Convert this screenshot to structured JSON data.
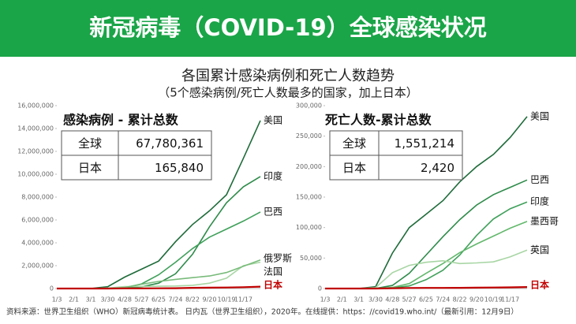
{
  "header": {
    "title": "新冠病毒（COVID-19）全球感染状况"
  },
  "subtitle": [
    "各国累计感染病例和死亡人数趋势",
    "（5个感染病例/死亡人数最多的国家，加上日本）"
  ],
  "chart_data": [
    {
      "type": "line",
      "title": "感染病例 - 累计总数",
      "table": [
        [
          "全球",
          "67,780,361"
        ],
        [
          "日本",
          "165,840"
        ]
      ],
      "categories": [
        "1/3",
        "2/1",
        "3/1",
        "3/30",
        "4/28",
        "5/27",
        "6/25",
        "7/24",
        "8/22",
        "9/20",
        "10/19",
        "11/17",
        null
      ],
      "ylim": [
        0,
        16000000
      ],
      "yticks": [
        0,
        {
          "value": 2000000,
          "label": "2,000,000"
        },
        {
          "value": 4000000,
          "label": "4,000,000"
        },
        {
          "value": 6000000,
          "label": "6,000,000"
        },
        {
          "value": 8000000,
          "label": "8,000,000"
        },
        {
          "value": 10000000,
          "label": "10,000,000"
        },
        {
          "value": 12000000,
          "label": "12,000,000"
        },
        {
          "value": 14000000,
          "label": "14,000,000"
        },
        {
          "value": 16000000,
          "label": "16,000,000"
        }
      ],
      "series": [
        {
          "name": "美国",
          "color": "#1e6b3a",
          "values": [
            0,
            0,
            0,
            160000,
            1000000,
            1700000,
            2400000,
            4100000,
            5600000,
            6800000,
            8200000,
            11400000,
            14700000
          ]
        },
        {
          "name": "印度",
          "color": "#2e8b4a",
          "values": [
            0,
            0,
            0,
            0,
            30000,
            150000,
            470000,
            1290000,
            3000000,
            5400000,
            7500000,
            8900000,
            9800000
          ]
        },
        {
          "name": "巴西",
          "color": "#3fa05a",
          "values": [
            0,
            0,
            0,
            0,
            70000,
            410000,
            1200000,
            2300000,
            3500000,
            4500000,
            5200000,
            5900000,
            6700000
          ]
        },
        {
          "name": "法国",
          "color": "#a8d6a4",
          "values": [
            0,
            0,
            0,
            40000,
            170000,
            180000,
            200000,
            220000,
            280000,
            470000,
            900000,
            2000000,
            2300000
          ]
        },
        {
          "name": "俄罗斯",
          "color": "#78bb7a",
          "values": [
            0,
            0,
            0,
            0,
            90000,
            370000,
            620000,
            800000,
            950000,
            1100000,
            1400000,
            1950000,
            2500000
          ]
        },
        {
          "name": "日本",
          "color": "#c00000",
          "values": [
            0,
            0,
            0,
            0,
            14000,
            17000,
            18000,
            28000,
            62000,
            79000,
            93000,
            120000,
            165840
          ]
        }
      ]
    },
    {
      "type": "line",
      "title": "死亡人数-累计总数",
      "table": [
        [
          "全球",
          "1,551,214"
        ],
        [
          "日本",
          "2,420"
        ]
      ],
      "categories": [
        "1/3",
        "2/1",
        "3/1",
        "3/30",
        "4/28",
        "5/27",
        "6/25",
        "7/24",
        "8/22",
        "9/20",
        "10/19",
        "11/17",
        null
      ],
      "ylim": [
        0,
        300000
      ],
      "yticks": [
        0,
        {
          "value": 50000,
          "label": "50,000"
        },
        {
          "value": 100000,
          "label": "100,000"
        },
        {
          "value": 150000,
          "label": "150,000"
        },
        {
          "value": 200000,
          "label": "200,000"
        },
        {
          "value": 250000,
          "label": "250,000"
        },
        {
          "value": 300000,
          "label": "300,000"
        }
      ],
      "series": [
        {
          "name": "美国",
          "color": "#1e6b3a",
          "values": [
            0,
            0,
            0,
            3000,
            58000,
            100000,
            122000,
            144000,
            175000,
            200000,
            220000,
            248000,
            282000
          ]
        },
        {
          "name": "巴西",
          "color": "#2e8b4a",
          "values": [
            0,
            0,
            0,
            150,
            5000,
            25000,
            55000,
            85000,
            113000,
            137000,
            154000,
            166000,
            178000
          ]
        },
        {
          "name": "印度",
          "color": "#3fa05a",
          "values": [
            0,
            0,
            0,
            30,
            1000,
            4300,
            14500,
            30000,
            55000,
            87000,
            114000,
            131000,
            142000
          ]
        },
        {
          "name": "墨西哥",
          "color": "#62b86c",
          "values": [
            0,
            0,
            0,
            30,
            1800,
            8100,
            25000,
            41000,
            59000,
            73000,
            86000,
            99000,
            110000
          ]
        },
        {
          "name": "英国",
          "color": "#a8d6a4",
          "values": [
            0,
            0,
            0,
            1400,
            26000,
            38000,
            43000,
            45500,
            41000,
            42000,
            43700,
            52000,
            63000
          ]
        },
        {
          "name": "日本",
          "color": "#c00000",
          "values": [
            0,
            0,
            0,
            50,
            420,
            850,
            970,
            1000,
            1180,
            1480,
            1650,
            1940,
            2420
          ]
        }
      ]
    }
  ],
  "source": "资料来源：世界卫生组织（WHO）新冠病毒统计表。 日内瓦（世界卫生组织），2020年。在线提供：https：//covid19.who.int/（最新引用：12月9日）"
}
